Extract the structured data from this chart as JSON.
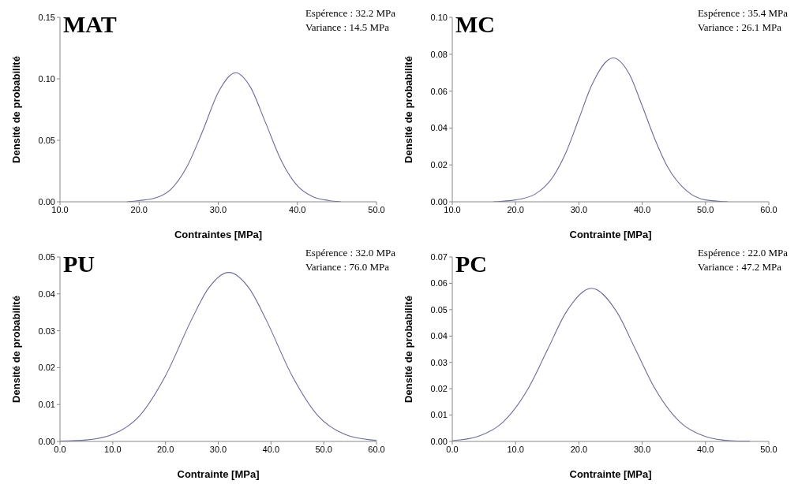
{
  "chart_data": [
    {
      "type": "line",
      "title": "MAT",
      "xlabel": "Contraintes [MPa]",
      "ylabel": "Densité de probabilité",
      "annotations": [
        "Espérence : 32.2 MPa",
        "Variance : 14.5 MPa"
      ],
      "series": [
        {
          "color": "#6b6b9a",
          "x": [
            18.5,
            20,
            22,
            24,
            26,
            28,
            30,
            32.2,
            34,
            36,
            38,
            40,
            42,
            44,
            45.5
          ],
          "values": [
            0.0,
            0.001,
            0.003,
            0.01,
            0.028,
            0.057,
            0.089,
            0.105,
            0.094,
            0.064,
            0.033,
            0.013,
            0.004,
            0.001,
            0.0
          ]
        }
      ],
      "xlim": [
        10,
        50
      ],
      "xticks": [
        {
          "value": 10,
          "label": "10.0"
        },
        {
          "value": 20,
          "label": "20.0"
        },
        {
          "value": 30,
          "label": "30.0"
        },
        {
          "value": 40,
          "label": "40.0"
        },
        {
          "value": 50,
          "label": "50.0"
        }
      ],
      "ylim": [
        0,
        0.15
      ],
      "yticks": [
        {
          "value": 0,
          "label": "0.00"
        },
        {
          "value": 0.05,
          "label": "0.05"
        },
        {
          "value": 0.1,
          "label": "0.10"
        },
        {
          "value": 0.15,
          "label": "0.15"
        }
      ],
      "grid": false
    },
    {
      "type": "line",
      "title": "MC",
      "xlabel": "Contrainte [MPa]",
      "ylabel": "Densité de probabilité",
      "annotations": [
        "Espérence : 35.4 MPa",
        "Variance : 26.1 MPa"
      ],
      "series": [
        {
          "color": "#6b6b9a",
          "x": [
            16.5,
            20,
            23,
            26,
            28,
            30,
            32,
            35.4,
            38,
            40,
            42,
            44,
            47,
            50,
            53.5
          ],
          "values": [
            0.0,
            0.001,
            0.004,
            0.014,
            0.027,
            0.045,
            0.063,
            0.078,
            0.069,
            0.052,
            0.034,
            0.019,
            0.006,
            0.001,
            0.0
          ]
        }
      ],
      "xlim": [
        10,
        60
      ],
      "xticks": [
        {
          "value": 10,
          "label": "10.0"
        },
        {
          "value": 20,
          "label": "20.0"
        },
        {
          "value": 30,
          "label": "30.0"
        },
        {
          "value": 40,
          "label": "40.0"
        },
        {
          "value": 50,
          "label": "50.0"
        },
        {
          "value": 60,
          "label": "60.0"
        }
      ],
      "ylim": [
        0,
        0.1
      ],
      "yticks": [
        {
          "value": 0,
          "label": "0.00"
        },
        {
          "value": 0.02,
          "label": "0.02"
        },
        {
          "value": 0.04,
          "label": "0.04"
        },
        {
          "value": 0.06,
          "label": "0.06"
        },
        {
          "value": 0.08,
          "label": "0.08"
        },
        {
          "value": 0.1,
          "label": "0.10"
        }
      ],
      "grid": false
    },
    {
      "type": "line",
      "title": "PU",
      "xlabel": "Contrainte [MPa]",
      "ylabel": "Densité de probabilité",
      "annotations": [
        "Espérence : 32.0 MPa",
        "Variance : 76.0 MPa"
      ],
      "series": [
        {
          "color": "#6b6b9a",
          "x": [
            0,
            5,
            10,
            15,
            20,
            25,
            28,
            32,
            36,
            39,
            44,
            49,
            54,
            59,
            60
          ],
          "values": [
            0.0001,
            0.0004,
            0.0019,
            0.0068,
            0.0178,
            0.0332,
            0.0412,
            0.0458,
            0.0412,
            0.0332,
            0.0178,
            0.0068,
            0.0019,
            0.0004,
            0.0003
          ]
        }
      ],
      "xlim": [
        0,
        60
      ],
      "xticks": [
        {
          "value": 0,
          "label": "0.0"
        },
        {
          "value": 10,
          "label": "10.0"
        },
        {
          "value": 20,
          "label": "20.0"
        },
        {
          "value": 30,
          "label": "30.0"
        },
        {
          "value": 40,
          "label": "40.0"
        },
        {
          "value": 50,
          "label": "50.0"
        },
        {
          "value": 60,
          "label": "60.0"
        }
      ],
      "ylim": [
        0,
        0.05
      ],
      "yticks": [
        {
          "value": 0,
          "label": "0.00"
        },
        {
          "value": 0.01,
          "label": "0.01"
        },
        {
          "value": 0.02,
          "label": "0.02"
        },
        {
          "value": 0.03,
          "label": "0.03"
        },
        {
          "value": 0.04,
          "label": "0.04"
        },
        {
          "value": 0.05,
          "label": "0.05"
        }
      ],
      "grid": false
    },
    {
      "type": "line",
      "title": "PC",
      "xlabel": "Contrainte [MPa]",
      "ylabel": "Densité de probabilité",
      "annotations": [
        "Espérence : 22.0 MPa",
        "Variance : 47.2 MPa"
      ],
      "series": [
        {
          "color": "#6b6b9a",
          "x": [
            0,
            4,
            8,
            12,
            15,
            18,
            22,
            26,
            29,
            32,
            36,
            40,
            44,
            47
          ],
          "values": [
            0.0003,
            0.0019,
            0.0073,
            0.0201,
            0.0346,
            0.0491,
            0.0581,
            0.0491,
            0.0346,
            0.0201,
            0.0073,
            0.0019,
            0.0003,
            0.0001
          ]
        }
      ],
      "xlim": [
        0,
        50
      ],
      "xticks": [
        {
          "value": 0,
          "label": "0.0"
        },
        {
          "value": 10,
          "label": "10.0"
        },
        {
          "value": 20,
          "label": "20.0"
        },
        {
          "value": 30,
          "label": "30.0"
        },
        {
          "value": 40,
          "label": "40.0"
        },
        {
          "value": 50,
          "label": "50.0"
        }
      ],
      "ylim": [
        0,
        0.07
      ],
      "yticks": [
        {
          "value": 0,
          "label": "0.00"
        },
        {
          "value": 0.01,
          "label": "0.01"
        },
        {
          "value": 0.02,
          "label": "0.02"
        },
        {
          "value": 0.03,
          "label": "0.03"
        },
        {
          "value": 0.04,
          "label": "0.04"
        },
        {
          "value": 0.05,
          "label": "0.05"
        },
        {
          "value": 0.06,
          "label": "0.06"
        },
        {
          "value": 0.07,
          "label": "0.07"
        }
      ],
      "grid": false
    }
  ]
}
